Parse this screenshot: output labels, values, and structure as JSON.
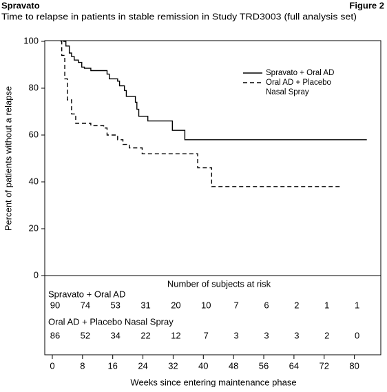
{
  "chart_data": {
    "type": "step",
    "header": "Spravato",
    "figure_label": "Figure 2",
    "title": "Time to relapse in patients in stable remission in Study TRD3003 (full analysis set)",
    "xlabel": "Weeks since entering maintenance phase",
    "ylabel": "Percent of patients without a relapse",
    "xlim": [
      -2,
      87
    ],
    "ylim": [
      0,
      100
    ],
    "xticks": [
      0,
      8,
      16,
      24,
      32,
      40,
      48,
      56,
      64,
      72,
      80
    ],
    "yticks": [
      0,
      20,
      40,
      60,
      80,
      100
    ],
    "legend": "upper right",
    "series": [
      {
        "name": "Spravato + Oral AD",
        "color": "#000000",
        "line_style": "solid",
        "x": [
          2.9,
          3.6,
          4.5,
          5.1,
          5.8,
          6.9,
          7.8,
          8.5,
          10.2,
          14.5,
          15.1,
          17.3,
          17.8,
          19.1,
          19.6,
          22,
          22.4,
          22.9,
          25.3,
          31.8,
          35.1,
          83.3
        ],
        "values": [
          100,
          98,
          95,
          93.5,
          92,
          91,
          89,
          88.5,
          87.5,
          86,
          84,
          83,
          81,
          79,
          76.5,
          74,
          71,
          68,
          66,
          62,
          58,
          58
        ]
      },
      {
        "name": "Oral AD + Placebo Nasal Spray",
        "color": "#000000",
        "line_style": "dashed",
        "x": [
          2.2,
          2.5,
          3.3,
          4,
          5.1,
          6.2,
          10.2,
          13.6,
          14.5,
          17.3,
          18.7,
          20.4,
          23.8,
          38.5,
          42.2,
          76.4
        ],
        "values": [
          100,
          94,
          84,
          75,
          69,
          65,
          64,
          63,
          60,
          58,
          56,
          54.5,
          52,
          46,
          38,
          38
        ]
      }
    ],
    "risk_table": {
      "title": "Number of subjects at risk",
      "groups": [
        {
          "name": "Spravato + Oral AD",
          "counts": [
            90,
            74,
            53,
            31,
            20,
            10,
            7,
            6,
            2,
            1,
            1
          ]
        },
        {
          "name": "Oral AD + Placebo Nasal Spray",
          "counts": [
            86,
            52,
            34,
            22,
            12,
            7,
            3,
            3,
            3,
            2,
            0
          ]
        }
      ]
    }
  }
}
